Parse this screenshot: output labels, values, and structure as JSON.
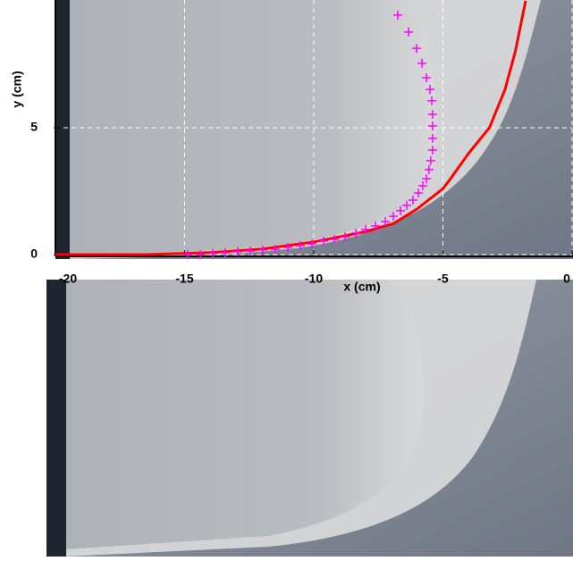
{
  "chart_data": {
    "type": "line",
    "xlabel": "x (cm)",
    "ylabel": "y (cm)",
    "xlim": [
      -20,
      0
    ],
    "ylim": [
      0,
      10
    ],
    "xticks": [
      -20,
      -15,
      -10,
      -5,
      0
    ],
    "yticks": [
      0,
      5
    ],
    "grid": true,
    "series": [
      {
        "type": "line",
        "color": "#ff0000",
        "x": [
          -20,
          -16.5,
          -14,
          -12,
          -10,
          -8,
          -6.9,
          -6,
          -5,
          -4.7,
          -4,
          -3.2,
          -2.6,
          -2.2,
          -1.8
        ],
        "values": [
          0,
          0,
          0.08,
          0.22,
          0.5,
          0.9,
          1.23,
          1.8,
          2.6,
          3,
          4,
          5,
          6.5,
          8,
          10
        ]
      },
      {
        "type": "scatter",
        "color": "#ff00ff",
        "x": [
          -6.75,
          -6.33,
          -6.02,
          -5.81,
          -5.64,
          -5.5,
          -5.43,
          -5.4,
          -5.4,
          -5.4,
          -5.4,
          -5.47,
          -5.54,
          -5.64,
          -5.78,
          -5.95,
          -6.16,
          -6.4,
          -6.64,
          -6.92,
          -7.23,
          -7.61,
          -7.99,
          -8.37,
          -8.79,
          -9.2,
          -9.62,
          -10.07,
          -10.52,
          -11,
          -11.49,
          -11.97,
          -12.46,
          -12.94,
          -13.43,
          -13.91,
          -14.39,
          -14.88
        ],
        "values": [
          9.44,
          8.77,
          8.13,
          7.54,
          6.97,
          6.51,
          6.06,
          5.53,
          5.07,
          4.58,
          4.12,
          3.7,
          3.35,
          2.99,
          2.71,
          2.43,
          2.15,
          1.94,
          1.73,
          1.51,
          1.3,
          1.13,
          0.99,
          0.85,
          0.7,
          0.6,
          0.53,
          0.42,
          0.35,
          0.28,
          0.21,
          0.18,
          0.14,
          0.11,
          0.07,
          0.04,
          0,
          0
        ]
      }
    ]
  }
}
